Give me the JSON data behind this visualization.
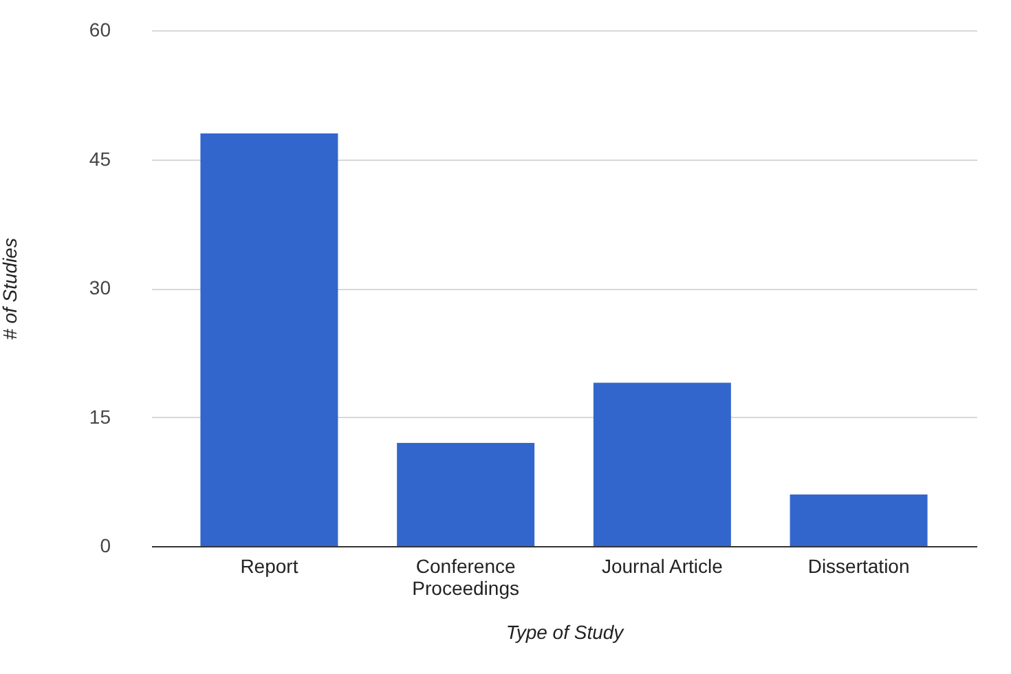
{
  "chart_data": {
    "type": "bar",
    "xlabel": "Type of Study",
    "ylabel": "# of Studies",
    "categories": [
      "Report",
      "Conference Proceedings",
      "Journal Article",
      "Dissertation"
    ],
    "values": [
      48,
      12,
      19,
      6
    ],
    "color": "#3366cc",
    "ylim": [
      0,
      60
    ],
    "yticks": [
      0,
      15,
      30,
      45,
      60
    ],
    "grid": "y"
  }
}
